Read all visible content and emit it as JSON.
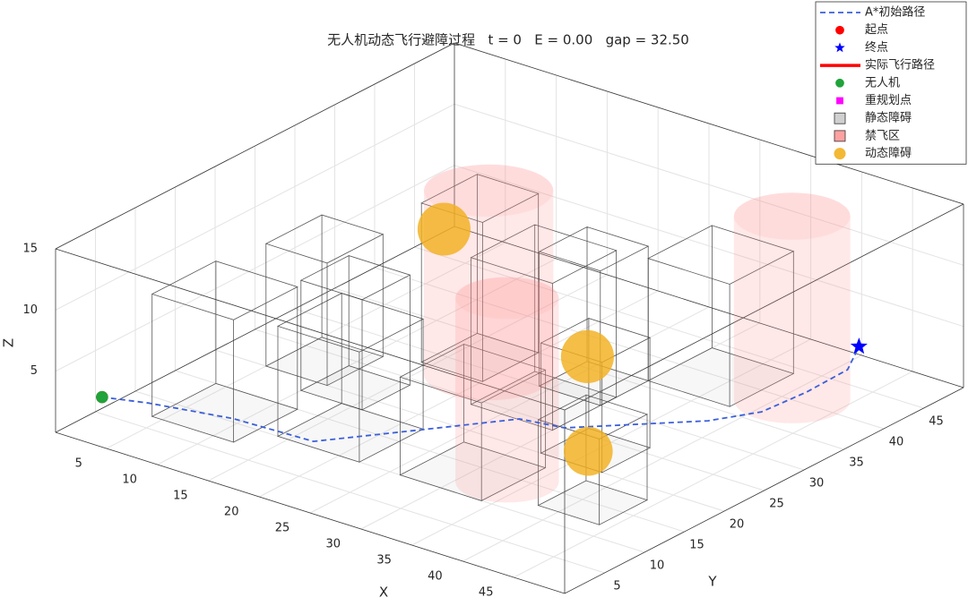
{
  "chart_data": {
    "type": "line3d",
    "title": "无人机动态飞行避障过程   t = 0   E = 0.00   gap = 32.50",
    "xlabel": "X",
    "ylabel": "Y",
    "zlabel": "Z",
    "xlim": [
      0,
      50
    ],
    "ylim": [
      0,
      50
    ],
    "zlim": [
      0,
      15
    ],
    "xticks": [
      5,
      10,
      15,
      20,
      25,
      30,
      35,
      40,
      45
    ],
    "yticks": [
      5,
      10,
      15,
      20,
      25,
      30,
      35,
      40,
      45
    ],
    "zticks": [
      5,
      10,
      15
    ],
    "grid": true,
    "legend": "northeast",
    "series": [
      {
        "name": "A*初始路径",
        "kind": "line",
        "style": "dashed",
        "color": "#3b5fd9",
        "x": [
          3,
          6.5,
          13.5,
          21.1,
          26.3,
          31,
          34.8,
          42.7,
          44.9,
          45.3,
          46.6,
          46
        ],
        "y": [
          2,
          3.3,
          5,
          5.4,
          12.3,
          18.6,
          19.4,
          27.3,
          31.2,
          36.3,
          39.8,
          42
        ],
        "z": [
          3,
          3,
          3,
          3,
          3,
          3,
          3,
          3,
          3,
          3,
          4,
          5
        ]
      },
      {
        "name": "起点",
        "kind": "point",
        "marker": "circle",
        "color": "#ff0000",
        "x": [
          3
        ],
        "y": [
          2
        ],
        "z": [
          3
        ]
      },
      {
        "name": "终点",
        "kind": "point",
        "marker": "star",
        "color": "#0000ff",
        "x": [
          46
        ],
        "y": [
          42
        ],
        "z": [
          5
        ]
      },
      {
        "name": "实际飞行路径",
        "kind": "line",
        "style": "solid",
        "color": "#ff0000",
        "x": [],
        "y": [],
        "z": []
      },
      {
        "name": "无人机",
        "kind": "point",
        "marker": "circle",
        "color": "#1fa33a",
        "x": [
          3
        ],
        "y": [
          2
        ],
        "z": [
          3
        ]
      },
      {
        "name": "重规划点",
        "kind": "point",
        "marker": "square",
        "color": "#ff00ff",
        "x": [],
        "y": [],
        "z": []
      },
      {
        "name": "静态障碍",
        "kind": "box",
        "color": "#b0b0b0",
        "boxes": [
          {
            "x": [
              4,
              12
            ],
            "y": [
              7,
              15
            ],
            "z": [
              0,
              10
            ]
          },
          {
            "x": [
              5,
              11
            ],
            "y": [
              20,
              27
            ],
            "z": [
              0,
              10
            ]
          },
          {
            "x": [
              14,
              22
            ],
            "y": [
              10,
              18
            ],
            "z": [
              0,
              9
            ]
          },
          {
            "x": [
              10,
              16
            ],
            "y": [
              18,
              24
            ],
            "z": [
              0,
              9
            ]
          },
          {
            "x": [
              14,
              20
            ],
            "y": [
              28,
              35
            ],
            "z": [
              0,
              13
            ]
          },
          {
            "x": [
              26,
              34
            ],
            "y": [
              10,
              18
            ],
            "z": [
              0,
              8
            ]
          },
          {
            "x": [
              22,
              30
            ],
            "y": [
              24,
              32
            ],
            "z": [
              0,
              12
            ]
          },
          {
            "x": [
              24,
              30
            ],
            "y": [
              30,
              36
            ],
            "z": [
              0,
              11
            ]
          },
          {
            "x": [
              32,
              38
            ],
            "y": [
              20,
              26
            ],
            "z": [
              0,
              9
            ]
          },
          {
            "x": [
              38,
              44
            ],
            "y": [
              12,
              18
            ],
            "z": [
              0,
              7
            ]
          },
          {
            "x": [
              30,
              38
            ],
            "y": [
              36,
              44
            ],
            "z": [
              0,
              10
            ]
          }
        ]
      },
      {
        "name": "禁飞区",
        "kind": "cylinder",
        "color": "#ff8a8a",
        "cylinders": [
          {
            "x": 19.5,
            "y": 29.4,
            "r": 5,
            "z": [
              0,
              15
            ]
          },
          {
            "x": 33.3,
            "y": 14.1,
            "r": 4,
            "z": [
              0,
              15
            ]
          },
          {
            "x": 41,
            "y": 40,
            "r": 4.5,
            "z": [
              0,
              15
            ]
          }
        ]
      },
      {
        "name": "动态障碍",
        "kind": "sphere",
        "color": "#f2b01e",
        "spheres": [
          {
            "x": 17,
            "y": 27,
            "z": 12,
            "r": 2.6
          },
          {
            "x": 35,
            "y": 22,
            "z": 8,
            "r": 2.6
          },
          {
            "x": 39,
            "y": 17,
            "z": 3,
            "r": 2.4
          }
        ]
      }
    ]
  }
}
